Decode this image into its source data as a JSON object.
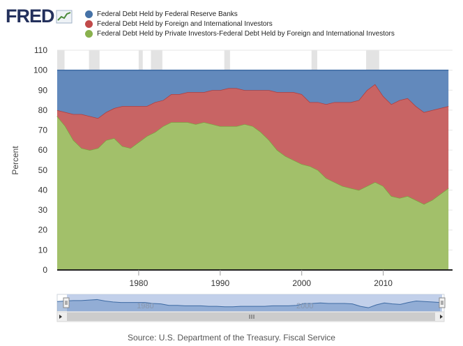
{
  "brand": {
    "logo_text": "FRED"
  },
  "legend": [
    {
      "label": "Federal Debt Held by Federal Reserve Banks",
      "color": "#4572a7"
    },
    {
      "label": "Federal Debt Held by Foreign and International Investors",
      "color": "#c14a4a"
    },
    {
      "label": "Federal Debt Held by Private Investors-Federal Debt Held by Foreign and International Investors",
      "color": "#89b14e"
    }
  ],
  "source": "Source: U.S. Department of the Treasury. Fiscal Service",
  "colors": {
    "fed_fill": "#6289bc",
    "fed_line": "#3d6aa3",
    "foreign_fill": "#c86464",
    "foreign_line": "#b03c3c",
    "private_fill": "#a2c06a",
    "private_line": "#7ea040",
    "recession": "#e3e3e3",
    "grid": "#e6e6e6"
  },
  "chart_data": {
    "type": "area",
    "stacked": true,
    "ylabel": "Percent",
    "xlabel": "",
    "ylim": [
      0,
      110
    ],
    "yticks": [
      0,
      10,
      20,
      30,
      40,
      50,
      60,
      70,
      80,
      90,
      100,
      110
    ],
    "xlim": [
      1970,
      2018.5
    ],
    "xticks": [
      1980,
      1990,
      2000,
      2010
    ],
    "grid": true,
    "legend_position": "top",
    "recessions": [
      [
        1970.0,
        1970.9
      ],
      [
        1973.9,
        1975.2
      ],
      [
        1980.0,
        1980.5
      ],
      [
        1981.5,
        1982.9
      ],
      [
        1990.5,
        1991.2
      ],
      [
        2001.2,
        2001.9
      ],
      [
        2007.9,
        2009.5
      ]
    ],
    "series": [
      {
        "name": "Federal Debt Held by Private Investors-Federal Debt Held by Foreign and International Investors",
        "x": [
          1970,
          1971,
          1972,
          1973,
          1974,
          1975,
          1976,
          1977,
          1978,
          1979,
          1980,
          1981,
          1982,
          1983,
          1984,
          1985,
          1986,
          1987,
          1988,
          1989,
          1990,
          1991,
          1992,
          1993,
          1994,
          1995,
          1996,
          1997,
          1998,
          1999,
          2000,
          2001,
          2002,
          2003,
          2004,
          2005,
          2006,
          2007,
          2008,
          2009,
          2010,
          2011,
          2012,
          2013,
          2014,
          2015,
          2016,
          2017,
          2018
        ],
        "values": [
          77,
          72,
          65,
          61,
          60,
          61,
          65,
          66,
          62,
          61,
          64,
          67,
          69,
          72,
          74,
          74,
          74,
          73,
          74,
          73,
          72,
          72,
          72,
          73,
          72,
          69,
          65,
          60,
          57,
          55,
          53,
          52,
          50,
          46,
          44,
          42,
          41,
          40,
          42,
          44,
          42,
          37,
          36,
          37,
          35,
          33,
          35,
          38,
          41
        ]
      },
      {
        "name": "Federal Debt Held by Foreign and International Investors",
        "x": [
          1970,
          1971,
          1972,
          1973,
          1974,
          1975,
          1976,
          1977,
          1978,
          1979,
          1980,
          1981,
          1982,
          1983,
          1984,
          1985,
          1986,
          1987,
          1988,
          1989,
          1990,
          1991,
          1992,
          1993,
          1994,
          1995,
          1996,
          1997,
          1998,
          1999,
          2000,
          2001,
          2002,
          2003,
          2004,
          2005,
          2006,
          2007,
          2008,
          2009,
          2010,
          2011,
          2012,
          2013,
          2014,
          2015,
          2016,
          2017,
          2018
        ],
        "values": [
          3,
          7,
          13,
          17,
          17,
          15,
          14,
          15,
          20,
          21,
          18,
          15,
          15,
          13,
          14,
          14,
          15,
          16,
          15,
          17,
          18,
          19,
          19,
          17,
          18,
          21,
          25,
          29,
          32,
          34,
          35,
          32,
          34,
          37,
          40,
          42,
          43,
          45,
          48,
          49,
          45,
          46,
          49,
          49,
          47,
          46,
          45,
          43,
          41
        ]
      },
      {
        "name": "Federal Debt Held by Federal Reserve Banks",
        "x": [
          1970,
          1971,
          1972,
          1973,
          1974,
          1975,
          1976,
          1977,
          1978,
          1979,
          1980,
          1981,
          1982,
          1983,
          1984,
          1985,
          1986,
          1987,
          1988,
          1989,
          1990,
          1991,
          1992,
          1993,
          1994,
          1995,
          1996,
          1997,
          1998,
          1999,
          2000,
          2001,
          2002,
          2003,
          2004,
          2005,
          2006,
          2007,
          2008,
          2009,
          2010,
          2011,
          2012,
          2013,
          2014,
          2015,
          2016,
          2017,
          2018
        ],
        "values": [
          20,
          21,
          22,
          22,
          23,
          24,
          21,
          19,
          18,
          18,
          18,
          18,
          16,
          15,
          12,
          12,
          11,
          11,
          11,
          10,
          10,
          9,
          9,
          10,
          10,
          10,
          10,
          11,
          11,
          11,
          12,
          16,
          16,
          17,
          16,
          16,
          16,
          15,
          10,
          7,
          13,
          17,
          15,
          14,
          18,
          21,
          20,
          19,
          18
        ]
      }
    ]
  }
}
